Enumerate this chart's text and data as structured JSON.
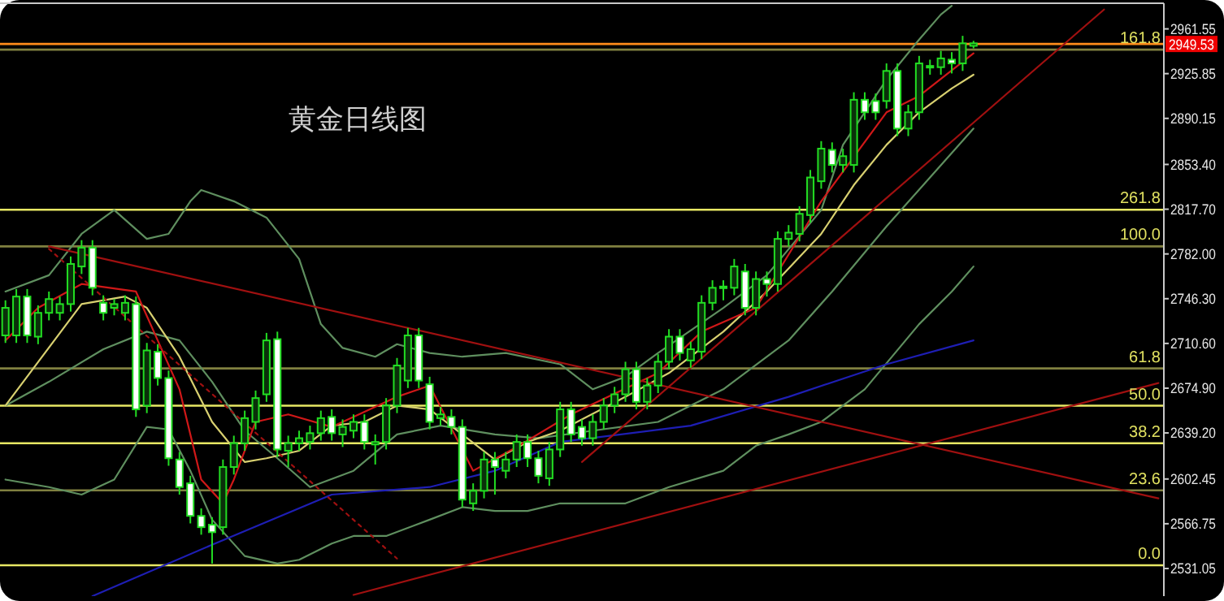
{
  "chart_data": {
    "type": "candlestick",
    "title": "黄金日线图",
    "categories": [
      null,
      null,
      null,
      null,
      null,
      null,
      null,
      null,
      null,
      null,
      null,
      null,
      null,
      null,
      null,
      null,
      null,
      null,
      null,
      null,
      null,
      null,
      null,
      null,
      null,
      null,
      null,
      null,
      null,
      null,
      null,
      null,
      null,
      null,
      null,
      null,
      null,
      null,
      null,
      null,
      null,
      null,
      null,
      null,
      null,
      null,
      null,
      null,
      null,
      null,
      null,
      null,
      null,
      null,
      null,
      null,
      null,
      null,
      null,
      null,
      null,
      null,
      null,
      null,
      null,
      null,
      null,
      null,
      null,
      null,
      null,
      null,
      null,
      null,
      null,
      null,
      null,
      null,
      null,
      null,
      null,
      null,
      null,
      null,
      null,
      null,
      null,
      null,
      null,
      null,
      null,
      null,
      null,
      null,
      null,
      null,
      null,
      null,
      null,
      null,
      null,
      null,
      null,
      null,
      null,
      null,
      null
    ],
    "ohlc": [
      [
        2717,
        2745,
        2711,
        2739
      ],
      [
        2717,
        2754,
        2711,
        2748
      ],
      [
        2748,
        2754,
        2711,
        2717
      ],
      [
        2716,
        2741,
        2710,
        2735
      ],
      [
        2735,
        2752,
        2729,
        2746
      ],
      [
        2735,
        2748,
        2729,
        2742
      ],
      [
        2742,
        2780,
        2736,
        2774
      ],
      [
        2772,
        2793,
        2766,
        2787
      ],
      [
        2787,
        2793,
        2749,
        2755
      ],
      [
        2743,
        2749,
        2729,
        2735
      ],
      [
        2739,
        2746,
        2733,
        2742
      ],
      [
        2735,
        2749,
        2729,
        2743
      ],
      [
        2742,
        2748,
        2652,
        2658
      ],
      [
        2661,
        2711,
        2655,
        2705
      ],
      [
        2704,
        2710,
        2677,
        2683
      ],
      [
        2683,
        2689,
        2613,
        2619
      ],
      [
        2618,
        2624,
        2590,
        2596
      ],
      [
        2599,
        2605,
        2567,
        2573
      ],
      [
        2573,
        2579,
        2558,
        2564
      ],
      [
        2566,
        2572,
        2535,
        2560
      ],
      [
        2564,
        2618,
        2558,
        2612
      ],
      [
        2612,
        2637,
        2606,
        2631
      ],
      [
        2631,
        2657,
        2625,
        2651
      ],
      [
        2648,
        2673,
        2642,
        2667
      ],
      [
        2670,
        2719,
        2664,
        2713
      ],
      [
        2714,
        2720,
        2620,
        2626
      ],
      [
        2625,
        2637,
        2612,
        2631
      ],
      [
        2631,
        2641,
        2625,
        2635
      ],
      [
        2632,
        2645,
        2626,
        2639
      ],
      [
        2639,
        2657,
        2633,
        2651
      ],
      [
        2652,
        2658,
        2633,
        2639
      ],
      [
        2638,
        2650,
        2628,
        2644
      ],
      [
        2641,
        2654,
        2635,
        2648
      ],
      [
        2648,
        2654,
        2626,
        2632
      ],
      [
        2630,
        2638,
        2614,
        2632
      ],
      [
        2632,
        2667,
        2626,
        2661
      ],
      [
        2661,
        2699,
        2655,
        2693
      ],
      [
        2681,
        2723,
        2675,
        2717
      ],
      [
        2717,
        2723,
        2675,
        2681
      ],
      [
        2678,
        2684,
        2642,
        2648
      ],
      [
        2651,
        2660,
        2645,
        2654
      ],
      [
        2652,
        2658,
        2638,
        2644
      ],
      [
        2644,
        2650,
        2580,
        2586
      ],
      [
        2583,
        2599,
        2577,
        2593
      ],
      [
        2593,
        2624,
        2587,
        2618
      ],
      [
        2618,
        2624,
        2590,
        2612
      ],
      [
        2609,
        2624,
        2603,
        2618
      ],
      [
        2618,
        2638,
        2612,
        2632
      ],
      [
        2632,
        2638,
        2612,
        2619
      ],
      [
        2619,
        2625,
        2599,
        2605
      ],
      [
        2603,
        2632,
        2597,
        2626
      ],
      [
        2626,
        2664,
        2620,
        2658
      ],
      [
        2658,
        2664,
        2632,
        2638
      ],
      [
        2644,
        2650,
        2629,
        2635
      ],
      [
        2635,
        2654,
        2629,
        2648
      ],
      [
        2648,
        2667,
        2642,
        2661
      ],
      [
        2661,
        2676,
        2655,
        2670
      ],
      [
        2670,
        2696,
        2664,
        2690
      ],
      [
        2690,
        2696,
        2658,
        2664
      ],
      [
        2664,
        2683,
        2658,
        2677
      ],
      [
        2677,
        2702,
        2671,
        2696
      ],
      [
        2696,
        2722,
        2690,
        2716
      ],
      [
        2716,
        2722,
        2697,
        2703
      ],
      [
        2697,
        2712,
        2691,
        2706
      ],
      [
        2704,
        2749,
        2698,
        2743
      ],
      [
        2743,
        2761,
        2737,
        2755
      ],
      [
        2755,
        2761,
        2745,
        2756
      ],
      [
        2755,
        2778,
        2749,
        2772
      ],
      [
        2768,
        2774,
        2733,
        2739
      ],
      [
        2739,
        2768,
        2733,
        2762
      ],
      [
        2762,
        2768,
        2748,
        2758
      ],
      [
        2758,
        2800,
        2752,
        2794
      ],
      [
        2794,
        2805,
        2788,
        2799
      ],
      [
        2798,
        2820,
        2792,
        2814
      ],
      [
        2813,
        2849,
        2807,
        2843
      ],
      [
        2840,
        2872,
        2834,
        2866
      ],
      [
        2865,
        2871,
        2847,
        2853
      ],
      [
        2853,
        2866,
        2847,
        2860
      ],
      [
        2853,
        2911,
        2847,
        2905
      ],
      [
        2905,
        2911,
        2889,
        2895
      ],
      [
        2904,
        2910,
        2889,
        2895
      ],
      [
        2904,
        2934,
        2898,
        2928
      ],
      [
        2928,
        2934,
        2876,
        2882
      ],
      [
        2882,
        2901,
        2876,
        2895
      ],
      [
        2895,
        2940,
        2889,
        2934
      ],
      [
        2931,
        2937,
        2925,
        2932
      ],
      [
        2931,
        2944,
        2925,
        2938
      ],
      [
        2937,
        2943,
        2926,
        2934
      ],
      [
        2934,
        2956,
        2928,
        2950
      ],
      [
        2948,
        2952,
        2946,
        2950
      ],
      null,
      null,
      null,
      null,
      null,
      null,
      null,
      null,
      null,
      null,
      null,
      null,
      null,
      null,
      null,
      null,
      null
    ],
    "color": "#22dd22",
    "series": [
      {
        "type": "line",
        "color": "#5f8f5f",
        "values": [
          2752,
          null,
          null,
          null,
          2765,
          null,
          null,
          2798,
          null,
          null,
          2817,
          null,
          null,
          2794,
          null,
          2798,
          null,
          2824,
          2833,
          null,
          null,
          2824,
          null,
          null,
          2811,
          null,
          null,
          2778,
          null,
          2726,
          null,
          2707,
          null,
          null,
          2700,
          null,
          2710,
          null,
          null,
          2703,
          null,
          null,
          2700,
          null,
          null,
          null,
          2703,
          null,
          null,
          null,
          null,
          2694,
          null,
          null,
          2674,
          null,
          null,
          2684,
          null,
          null,
          2703,
          null,
          null,
          null,
          null,
          null,
          2739,
          null,
          null,
          null,
          2765,
          null,
          null,
          null,
          null,
          2817,
          null,
          2869,
          null,
          null,
          null,
          2921,
          null,
          null,
          2953,
          null,
          2973,
          2980,
          null,
          null,
          null,
          null,
          null,
          null,
          null,
          null,
          null,
          null,
          null,
          null,
          null,
          null,
          null,
          null,
          null,
          null,
          null
        ]
      },
      {
        "type": "line",
        "color": "#5f8f5f",
        "values": [
          2661,
          null,
          null,
          null,
          2680,
          null,
          null,
          null,
          null,
          2706,
          null,
          null,
          null,
          2720,
          null,
          null,
          2713,
          null,
          null,
          2680,
          null,
          null,
          2641,
          null,
          null,
          2619,
          null,
          null,
          2596,
          null,
          null,
          null,
          2609,
          null,
          null,
          null,
          2638,
          null,
          null,
          null,
          2645,
          null,
          null,
          null,
          null,
          2638,
          null,
          null,
          null,
          2635,
          null,
          null,
          null,
          null,
          2641,
          null,
          null,
          null,
          null,
          null,
          2648,
          null,
          null,
          null,
          null,
          null,
          2674,
          null,
          null,
          null,
          null,
          null,
          2713,
          null,
          null,
          null,
          2752,
          null,
          null,
          null,
          null,
          2804,
          null,
          null,
          null,
          2843,
          null,
          null,
          null,
          2882,
          null,
          null,
          null,
          null,
          null,
          null,
          null,
          null,
          null,
          null,
          null,
          null,
          null,
          null,
          null,
          null,
          null
        ]
      },
      {
        "type": "line",
        "color": "#5f8f5f",
        "values": [
          2602,
          null,
          null,
          null,
          2596,
          null,
          null,
          2590,
          null,
          null,
          2602,
          null,
          null,
          2644,
          null,
          2642,
          null,
          2609,
          null,
          2570,
          null,
          null,
          2541,
          null,
          null,
          2535,
          null,
          2538,
          null,
          null,
          2551,
          null,
          2557,
          null,
          null,
          2557,
          null,
          null,
          null,
          2570,
          null,
          null,
          2580,
          null,
          null,
          2577,
          null,
          null,
          2577,
          null,
          null,
          2583,
          null,
          null,
          null,
          null,
          null,
          2583,
          null,
          null,
          null,
          2596,
          null,
          null,
          null,
          null,
          2609,
          null,
          null,
          2629,
          null,
          null,
          2638,
          null,
          null,
          2648,
          null,
          null,
          null,
          2674,
          null,
          null,
          null,
          null,
          2726,
          null,
          null,
          2752,
          null,
          2772,
          null,
          null,
          null,
          null,
          null,
          null,
          null,
          null,
          null,
          null,
          null,
          null,
          null,
          null,
          null,
          null,
          null
        ]
      },
      {
        "type": "line",
        "color": "#1e1eb4",
        "values": [
          null,
          null,
          null,
          null,
          null,
          null,
          null,
          null,
          2509,
          null,
          null,
          null,
          null,
          null,
          null,
          null,
          null,
          null,
          null,
          2550,
          null,
          null,
          null,
          null,
          null,
          null,
          null,
          null,
          null,
          null,
          2590,
          null,
          null,
          null,
          null,
          null,
          null,
          null,
          null,
          2596,
          null,
          null,
          null,
          null,
          null,
          2609,
          null,
          null,
          null,
          null,
          null,
          2632,
          null,
          null,
          null,
          null,
          null,
          null,
          null,
          null,
          null,
          null,
          null,
          2645,
          null,
          null,
          null,
          null,
          null,
          null,
          null,
          null,
          2668,
          null,
          null,
          null,
          null,
          null,
          null,
          null,
          null,
          2694,
          null,
          null,
          null,
          null,
          null,
          null,
          null,
          2713,
          null,
          null,
          null,
          null,
          null,
          null,
          null,
          null,
          null,
          null,
          null,
          null,
          null,
          null,
          null,
          null,
          null
        ]
      },
      {
        "type": "line",
        "color": "#d8d070",
        "values": [
          2661,
          null,
          null,
          null,
          null,
          null,
          null,
          2742,
          null,
          null,
          null,
          2748,
          null,
          2739,
          null,
          null,
          2700,
          null,
          null,
          2648,
          null,
          null,
          2616,
          null,
          2619,
          null,
          null,
          2625,
          null,
          null,
          2645,
          null,
          null,
          2648,
          null,
          null,
          2661,
          null,
          null,
          2658,
          null,
          null,
          2638,
          null,
          null,
          2618,
          null,
          null,
          2632,
          null,
          null,
          2641,
          null,
          null,
          null,
          null,
          null,
          2668,
          null,
          null,
          null,
          2687,
          null,
          null,
          null,
          null,
          2720,
          null,
          null,
          null,
          2752,
          null,
          null,
          null,
          null,
          2798,
          null,
          null,
          2837,
          null,
          null,
          2869,
          null,
          null,
          2895,
          null,
          null,
          2914,
          null,
          2925,
          null,
          null,
          null,
          null,
          null,
          null,
          null,
          null,
          null,
          null,
          null,
          null,
          null,
          null,
          null,
          null,
          null
        ]
      },
      {
        "type": "line",
        "color": "#d01818",
        "values": [
          2713,
          null,
          null,
          2739,
          null,
          null,
          null,
          2758,
          null,
          null,
          null,
          null,
          2752,
          null,
          2713,
          null,
          2674,
          null,
          2602,
          null,
          2583,
          2602,
          null,
          2648,
          null,
          null,
          2654,
          null,
          null,
          null,
          2644,
          null,
          null,
          null,
          null,
          null,
          2668,
          null,
          null,
          2677,
          null,
          null,
          null,
          2609,
          null,
          null,
          null,
          2628,
          null,
          null,
          null,
          null,
          2654,
          null,
          null,
          null,
          null,
          null,
          null,
          null,
          2687,
          null,
          null,
          null,
          2720,
          null,
          null,
          null,
          null,
          2739,
          null,
          null,
          null,
          null,
          null,
          2824,
          null,
          null,
          null,
          null,
          null,
          2895,
          null,
          null,
          2908,
          null,
          null,
          null,
          null,
          2942,
          null,
          null,
          null,
          null,
          null,
          null,
          null,
          null,
          null,
          null,
          null,
          null,
          null,
          null,
          null,
          null,
          null
        ]
      },
      {
        "type": "line",
        "color": "#a01010",
        "values": [
          null,
          null,
          null,
          null,
          2788,
          null,
          null,
          null,
          null,
          null,
          null,
          null,
          null,
          null,
          null,
          null,
          null,
          null,
          null,
          null,
          null,
          null,
          null,
          null,
          null,
          null,
          null,
          null,
          null,
          null,
          null,
          null,
          null,
          null,
          null,
          null,
          null,
          null,
          null,
          null,
          null,
          null,
          null,
          null,
          null,
          null,
          null,
          null,
          null,
          null,
          null,
          null,
          null,
          null,
          null,
          null,
          null,
          null,
          null,
          null,
          null,
          null,
          null,
          null,
          null,
          null,
          null,
          null,
          null,
          null,
          null,
          null,
          null,
          null,
          null,
          null,
          null,
          null,
          null,
          null,
          null,
          null,
          null,
          null,
          null,
          null,
          null,
          null,
          null,
          null,
          null,
          null,
          null,
          null,
          null,
          null,
          null,
          null,
          null,
          null,
          null,
          null,
          null,
          null,
          null,
          null,
          2587
        ]
      },
      {
        "type": "line",
        "color": "#a01010",
        "values": [
          null,
          null,
          null,
          null,
          null,
          null,
          null,
          null,
          null,
          null,
          null,
          null,
          null,
          null,
          null,
          null,
          null,
          null,
          null,
          null,
          null,
          null,
          null,
          null,
          null,
          null,
          null,
          null,
          null,
          null,
          null,
          null,
          2510,
          null,
          null,
          null,
          null,
          null,
          null,
          null,
          null,
          null,
          null,
          null,
          null,
          null,
          null,
          null,
          null,
          null,
          null,
          null,
          null,
          null,
          null,
          null,
          null,
          null,
          null,
          null,
          null,
          null,
          null,
          null,
          null,
          null,
          null,
          null,
          null,
          null,
          null,
          null,
          null,
          null,
          null,
          null,
          null,
          null,
          null,
          null,
          null,
          null,
          null,
          null,
          null,
          null,
          null,
          null,
          null,
          null,
          null,
          null,
          null,
          null,
          null,
          null,
          null,
          null,
          null,
          null,
          null,
          null,
          null,
          null,
          null,
          null,
          2679
        ]
      },
      {
        "type": "line",
        "color": "#a01010",
        "values": [
          null,
          null,
          null,
          null,
          null,
          null,
          null,
          null,
          null,
          null,
          null,
          null,
          null,
          null,
          null,
          null,
          null,
          null,
          null,
          null,
          null,
          null,
          null,
          null,
          null,
          null,
          null,
          null,
          null,
          null,
          null,
          null,
          null,
          null,
          null,
          null,
          null,
          null,
          null,
          null,
          null,
          null,
          null,
          null,
          null,
          null,
          null,
          null,
          null,
          null,
          null,
          null,
          null,
          2616,
          null,
          null,
          null,
          null,
          null,
          null,
          null,
          null,
          null,
          null,
          null,
          null,
          null,
          null,
          null,
          null,
          null,
          null,
          null,
          null,
          null,
          null,
          null,
          null,
          null,
          null,
          null,
          null,
          null,
          null,
          null,
          null,
          null,
          null,
          null,
          null,
          null,
          null,
          null,
          null,
          null,
          null,
          null,
          null,
          null,
          null,
          null,
          2977,
          null,
          null,
          null,
          null,
          null
        ]
      },
      {
        "type": "line",
        "color": "#a01010",
        "line_style": "dotted",
        "values": [
          null,
          null,
          null,
          null,
          2786,
          null,
          null,
          null,
          null,
          null,
          null,
          null,
          null,
          null,
          null,
          null,
          null,
          null,
          null,
          null,
          null,
          null,
          null,
          null,
          null,
          null,
          null,
          null,
          null,
          null,
          null,
          null,
          null,
          null,
          null,
          null,
          2539,
          null,
          null,
          null,
          null,
          null,
          null,
          null,
          null,
          null,
          null,
          null,
          null,
          null,
          null,
          null,
          null,
          null,
          null,
          null,
          null,
          null,
          null,
          null,
          null,
          null,
          null,
          null,
          null,
          null,
          null,
          null,
          null,
          null,
          null,
          null,
          null,
          null,
          null,
          null,
          null,
          null,
          null,
          null,
          null,
          null,
          null,
          null,
          null,
          null,
          null,
          null,
          null,
          null,
          null,
          null,
          null,
          null,
          null,
          null,
          null,
          null,
          null,
          null,
          null,
          null,
          null,
          null,
          null,
          null,
          null
        ]
      }
    ],
    "ref_lines": [
      {
        "axis": "y",
        "value": 2945,
        "color": "#808040"
      },
      {
        "axis": "y",
        "value": 2817.3,
        "color": "#e8e864"
      },
      {
        "axis": "y",
        "value": 2788,
        "color": "#808040"
      },
      {
        "axis": "y",
        "value": 2690.7,
        "color": "#808040"
      },
      {
        "axis": "y",
        "value": 2660.9,
        "color": "#e8e864"
      },
      {
        "axis": "y",
        "value": 2631,
        "color": "#e8e864"
      },
      {
        "axis": "y",
        "value": 2593.4,
        "color": "#808040"
      },
      {
        "axis": "y",
        "value": 2533.6,
        "color": "#e8e864"
      },
      {
        "axis": "y",
        "value": 2949.53,
        "label": "2949.53",
        "color": "#ff8c1a"
      }
    ],
    "annotations": [
      {
        "text": "161.8",
        "y": 2945
      },
      {
        "text": "261.8",
        "y": 2817.3
      },
      {
        "text": "100.0",
        "y": 2788
      },
      {
        "text": "61.8",
        "y": 2690.7
      },
      {
        "text": "50.0",
        "y": 2660.9
      },
      {
        "text": "38.2",
        "y": 2631
      },
      {
        "text": "23.6",
        "y": 2593.4
      },
      {
        "text": "0.0",
        "y": 2533.6
      }
    ],
    "ylim": [
      2509,
      2982
    ],
    "yticks": [
      2531.05,
      2566.75,
      2602.45,
      {
        "value": 2639.2,
        "label": "2639.20"
      },
      {
        "value": 2674.9,
        "label": "2674.90"
      },
      {
        "value": 2710.6,
        "label": "2710.60"
      },
      {
        "value": 2746.3,
        "label": "2746.30"
      },
      {
        "value": 2782,
        "label": "2782.00"
      },
      {
        "value": 2817.7,
        "label": "2817.70"
      },
      {
        "value": 2853.4,
        "label": "2853.40"
      },
      2890.15,
      2925.85,
      2961.55
    ],
    "tick_labels": "y"
  }
}
